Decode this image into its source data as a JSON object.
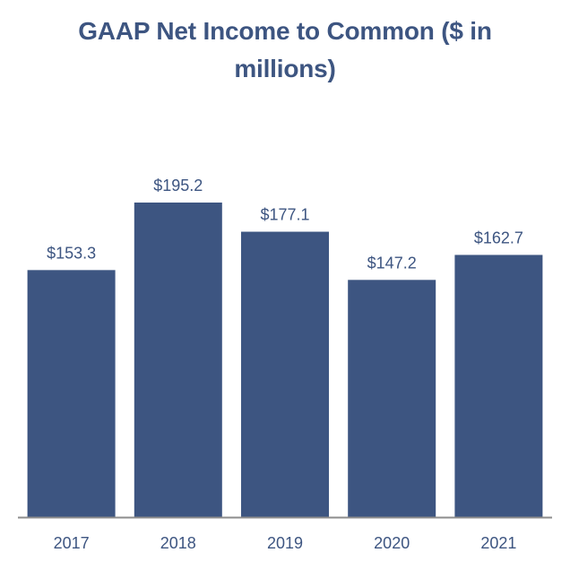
{
  "chart_data": {
    "type": "bar",
    "title": "GAAP Net Income to Common ($ in millions)",
    "xlabel": "",
    "ylabel": "",
    "categories": [
      "2017",
      "2018",
      "2019",
      "2020",
      "2021"
    ],
    "values": [
      153.3,
      195.2,
      177.1,
      147.2,
      162.7
    ],
    "data_labels": [
      "$153.3",
      "$195.2",
      "$177.1",
      "$147.2",
      "$162.7"
    ],
    "ylim": [
      0,
      195.2
    ],
    "grid": false,
    "legend": "none",
    "bar_color": "#3d5581",
    "axis_color": "#8c8c8c",
    "text_color": "#3d5581"
  }
}
